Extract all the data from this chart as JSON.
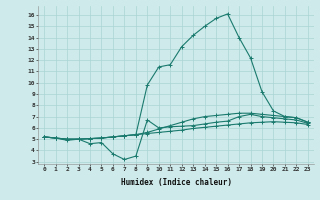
{
  "xlabel": "Humidex (Indice chaleur)",
  "background_color": "#ceeaea",
  "grid_color": "#aad4d4",
  "line_color": "#1a7a6e",
  "xlim": [
    -0.5,
    23.5
  ],
  "ylim": [
    2.8,
    16.8
  ],
  "xticks": [
    0,
    1,
    2,
    3,
    4,
    5,
    6,
    7,
    8,
    9,
    10,
    11,
    12,
    13,
    14,
    15,
    16,
    17,
    18,
    19,
    20,
    21,
    22,
    23
  ],
  "yticks": [
    3,
    4,
    5,
    6,
    7,
    8,
    9,
    10,
    11,
    12,
    13,
    14,
    15,
    16
  ],
  "series": [
    [
      5.2,
      5.1,
      4.9,
      5.0,
      4.6,
      4.7,
      3.7,
      3.2,
      3.5,
      6.7,
      6.0,
      6.1,
      6.15,
      6.2,
      6.35,
      6.5,
      6.6,
      7.0,
      7.2,
      7.0,
      6.9,
      6.8,
      6.7,
      6.4
    ],
    [
      5.2,
      5.1,
      5.0,
      5.0,
      5.05,
      5.1,
      5.2,
      5.3,
      5.4,
      5.5,
      5.6,
      5.7,
      5.8,
      5.95,
      6.05,
      6.15,
      6.25,
      6.35,
      6.45,
      6.5,
      6.55,
      6.5,
      6.45,
      6.3
    ],
    [
      5.2,
      5.1,
      5.0,
      5.0,
      5.05,
      5.1,
      5.2,
      5.3,
      5.4,
      5.6,
      5.9,
      6.2,
      6.5,
      6.8,
      7.0,
      7.1,
      7.2,
      7.3,
      7.3,
      7.2,
      7.1,
      7.0,
      6.9,
      6.5
    ],
    [
      5.2,
      5.1,
      5.0,
      5.0,
      5.05,
      5.1,
      5.2,
      5.3,
      5.4,
      9.8,
      11.4,
      11.6,
      13.2,
      14.2,
      15.0,
      15.7,
      16.1,
      14.0,
      12.2,
      9.2,
      7.5,
      7.0,
      6.9,
      6.5
    ]
  ]
}
